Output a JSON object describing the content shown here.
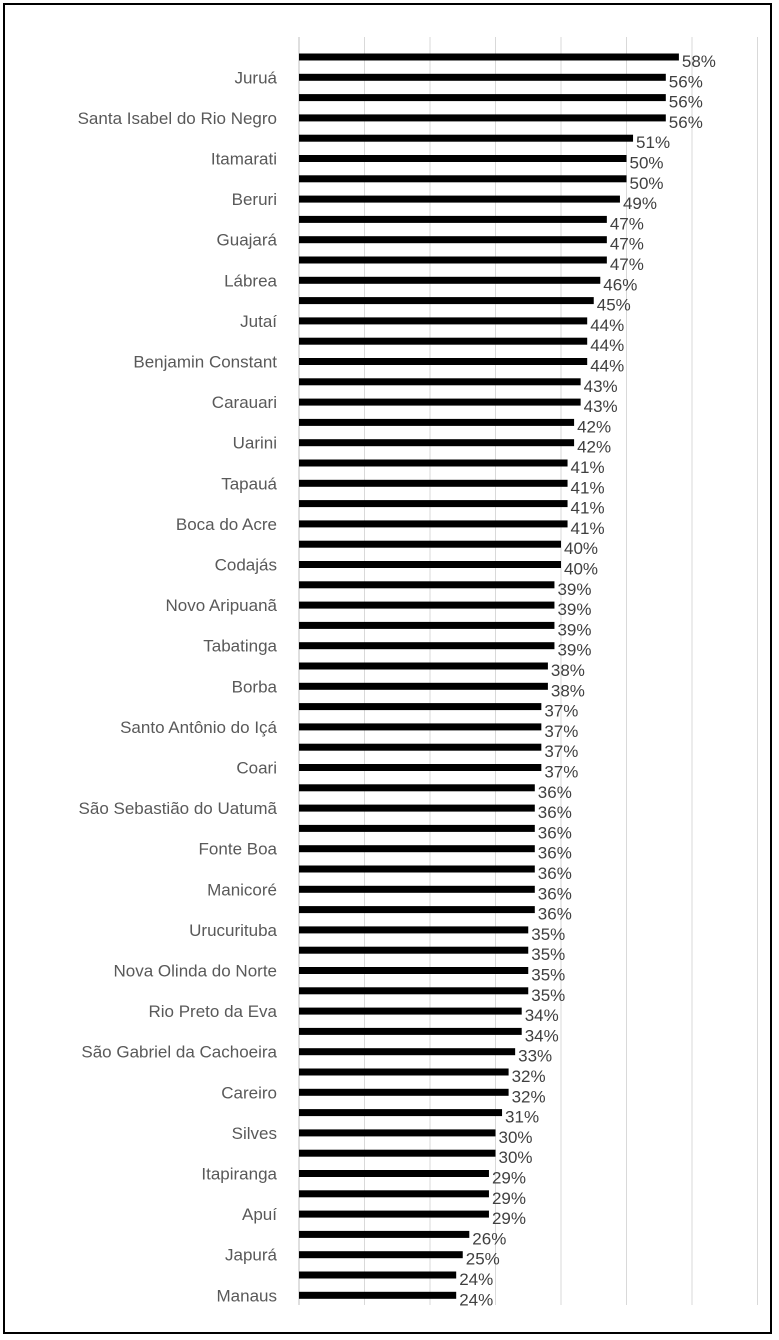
{
  "chart_data": {
    "type": "bar",
    "orientation": "horizontal",
    "categories": [
      "",
      "Juruá",
      "",
      "Santa Isabel do Rio Negro",
      "",
      "Itamarati",
      "",
      "Beruri",
      "",
      "Guajará",
      "",
      "Lábrea",
      "",
      "Jutaí",
      "",
      "Benjamin Constant",
      "",
      "Carauari",
      "",
      "Uarini",
      "",
      "Tapauá",
      "",
      "Boca do Acre",
      "",
      "Codajás",
      "",
      "Novo Aripuanã",
      "",
      "Tabatinga",
      "",
      "Borba",
      "",
      "Santo Antônio do Içá",
      "",
      "Coari",
      "",
      "São Sebastião do Uatumã",
      "",
      "Fonte Boa",
      "",
      "Manicoré",
      "",
      "Urucurituba",
      "",
      "Nova Olinda do Norte",
      "",
      "Rio Preto da Eva",
      "",
      "São Gabriel da Cachoeira",
      "",
      "Careiro",
      "",
      "Silves",
      "",
      "Itapiranga",
      "",
      "Apuí",
      "",
      "Japurá",
      "",
      "Manaus"
    ],
    "values": [
      58,
      56,
      56,
      56,
      51,
      50,
      50,
      49,
      47,
      47,
      47,
      46,
      45,
      44,
      44,
      44,
      43,
      43,
      42,
      42,
      41,
      41,
      41,
      41,
      40,
      40,
      39,
      39,
      39,
      39,
      38,
      38,
      37,
      37,
      37,
      37,
      36,
      36,
      36,
      36,
      36,
      36,
      36,
      35,
      35,
      35,
      35,
      34,
      34,
      33,
      32,
      32,
      31,
      30,
      30,
      29,
      29,
      29,
      26,
      25,
      24,
      24
    ],
    "labels": [
      "58%",
      "56%",
      "56%",
      "56%",
      "51%",
      "50%",
      "50%",
      "49%",
      "47%",
      "47%",
      "47%",
      "46%",
      "45%",
      "44%",
      "44%",
      "44%",
      "43%",
      "43%",
      "42%",
      "42%",
      "41%",
      "41%",
      "41%",
      "41%",
      "40%",
      "40%",
      "39%",
      "39%",
      "39%",
      "39%",
      "38%",
      "38%",
      "37%",
      "37%",
      "37%",
      "37%",
      "36%",
      "36%",
      "36%",
      "36%",
      "36%",
      "36%",
      "36%",
      "35%",
      "35%",
      "35%",
      "35%",
      "34%",
      "34%",
      "33%",
      "32%",
      "32%",
      "31%",
      "30%",
      "30%",
      "29%",
      "29%",
      "29%",
      "26%",
      "25%",
      "24%",
      "24%"
    ],
    "xlim": [
      0,
      70
    ],
    "grid": true,
    "legend": "none",
    "title": "",
    "xlabel": "",
    "ylabel": ""
  },
  "colors": {
    "bar": "#000000",
    "grid": "#d9d9d9",
    "axis": "#bfbfbf",
    "category_text": "#595959",
    "value_text": "#404040"
  }
}
